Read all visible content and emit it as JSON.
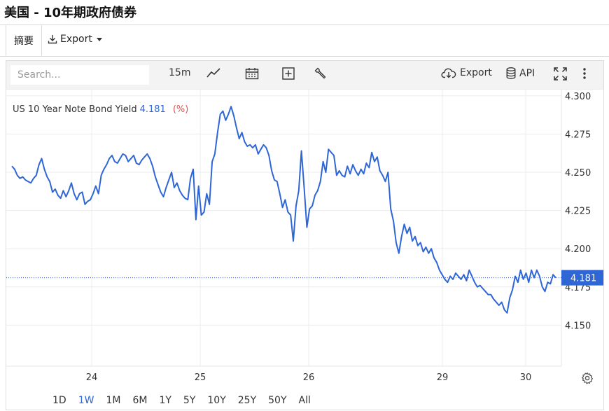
{
  "page_title": "美国 - 10年期政府债券",
  "tabs": {
    "summary": "摘要",
    "export": "Export"
  },
  "toolbar": {
    "search_placeholder": "Search...",
    "interval": "15m",
    "export_label": "Export",
    "api_label": "API"
  },
  "legend": {
    "name": "US 10 Year Note Bond Yield",
    "value": "4.181",
    "pct": "(%)"
  },
  "ranges": [
    "1D",
    "1W",
    "1M",
    "6M",
    "1Y",
    "5Y",
    "10Y",
    "25Y",
    "50Y",
    "All"
  ],
  "active_range": "1W",
  "colors": {
    "line": "#2f66d6",
    "last_price_bg": "#2f66d6",
    "pct": "#d9534f"
  },
  "chart_data": {
    "type": "line",
    "title": "",
    "xlabel": "",
    "ylabel": "",
    "ylim": [
      4.13,
      4.305
    ],
    "yticks": [
      "4.150",
      "4.175",
      "4.200",
      "4.225",
      "4.250",
      "4.275",
      "4.300"
    ],
    "xticks": [
      "24",
      "25",
      "26",
      "29",
      "30"
    ],
    "last_value": "4.181",
    "series": [
      {
        "name": "US 10 Year Note Bond Yield",
        "y": [
          4.254,
          4.252,
          4.248,
          4.246,
          4.247,
          4.245,
          4.244,
          4.243,
          4.246,
          4.248,
          4.255,
          4.259,
          4.252,
          4.247,
          4.244,
          4.237,
          4.239,
          4.235,
          4.233,
          4.238,
          4.234,
          4.238,
          4.243,
          4.236,
          4.232,
          4.236,
          4.237,
          4.229,
          4.231,
          4.232,
          4.236,
          4.241,
          4.236,
          4.248,
          4.252,
          4.255,
          4.259,
          4.261,
          4.257,
          4.256,
          4.259,
          4.262,
          4.261,
          4.257,
          4.259,
          4.261,
          4.256,
          4.255,
          4.258,
          4.26,
          4.262,
          4.259,
          4.254,
          4.247,
          4.242,
          4.237,
          4.234,
          4.24,
          4.245,
          4.25,
          4.24,
          4.243,
          4.238,
          4.235,
          4.233,
          4.232,
          4.246,
          4.252,
          4.219,
          4.241,
          4.222,
          4.224,
          4.236,
          4.229,
          4.257,
          4.262,
          4.276,
          4.288,
          4.29,
          4.284,
          4.288,
          4.293,
          4.287,
          4.279,
          4.272,
          4.276,
          4.27,
          4.267,
          4.268,
          4.266,
          4.268,
          4.262,
          4.265,
          4.268,
          4.266,
          4.261,
          4.251,
          4.245,
          4.244,
          4.236,
          4.227,
          4.232,
          4.224,
          4.222,
          4.205,
          4.228,
          4.238,
          4.264,
          4.24,
          4.214,
          4.226,
          4.228,
          4.235,
          4.238,
          4.244,
          4.257,
          4.25,
          4.265,
          4.263,
          4.261,
          4.248,
          4.251,
          4.248,
          4.247,
          4.254,
          4.249,
          4.255,
          4.251,
          4.248,
          4.252,
          4.249,
          4.256,
          4.253,
          4.263,
          4.257,
          4.26,
          4.251,
          4.248,
          4.244,
          4.25,
          4.226,
          4.218,
          4.204,
          4.197,
          4.208,
          4.216,
          4.21,
          4.214,
          4.205,
          4.208,
          4.202,
          4.204,
          4.198,
          4.201,
          4.197,
          4.2,
          4.194,
          4.191,
          4.186,
          4.183,
          4.18,
          4.178,
          4.182,
          4.18,
          4.184,
          4.182,
          4.18,
          4.183,
          4.179,
          4.186,
          4.182,
          4.178,
          4.175,
          4.176,
          4.174,
          4.172,
          4.17,
          4.17,
          4.167,
          4.165,
          4.163,
          4.165,
          4.16,
          4.158,
          4.168,
          4.173,
          4.182,
          4.178,
          4.186,
          4.18,
          4.184,
          4.178,
          4.186,
          4.181,
          4.186,
          4.182,
          4.175,
          4.172,
          4.178,
          4.177,
          4.183,
          4.181
        ]
      }
    ]
  }
}
